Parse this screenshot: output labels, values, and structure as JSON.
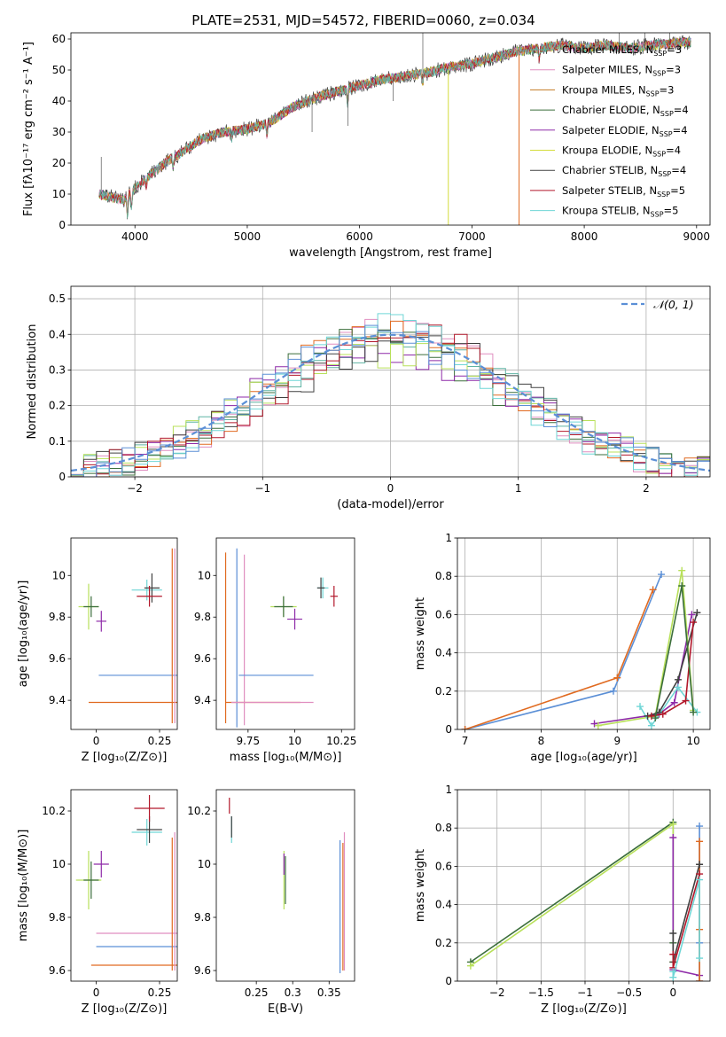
{
  "chart_data": [
    {
      "type": "line",
      "title": "PLATE=2531, MJD=54572, FIBERID=0060, z=0.034",
      "xlabel": "wavelength [Angstrom, rest frame]",
      "ylabel": "Flux [fλ10⁻¹⁷ erg cm⁻² s⁻¹ A⁻¹]",
      "xlim": [
        3430,
        9120
      ],
      "ylim": [
        0,
        62
      ],
      "xticks": [
        4000,
        5000,
        6000,
        7000,
        8000,
        9000
      ],
      "yticks": [
        0,
        10,
        20,
        30,
        40,
        50,
        60
      ],
      "legend_position": "upper right",
      "spectrum_anchor_points": [
        [
          3680,
          10
        ],
        [
          3900,
          8
        ],
        [
          4000,
          12
        ],
        [
          4200,
          18
        ],
        [
          4300,
          21
        ],
        [
          4400,
          23
        ],
        [
          4600,
          28
        ],
        [
          4800,
          30
        ],
        [
          5000,
          31
        ],
        [
          5200,
          33
        ],
        [
          5400,
          38
        ],
        [
          5600,
          41
        ],
        [
          5800,
          43
        ],
        [
          6000,
          45
        ],
        [
          6200,
          47
        ],
        [
          6400,
          48
        ],
        [
          6600,
          49
        ],
        [
          6800,
          51
        ],
        [
          7000,
          52
        ],
        [
          7200,
          54
        ],
        [
          7400,
          56
        ],
        [
          7600,
          57
        ],
        [
          7800,
          58
        ],
        [
          8000,
          57
        ],
        [
          8200,
          58
        ],
        [
          8400,
          57
        ],
        [
          8600,
          58
        ],
        [
          8900,
          59
        ]
      ],
      "series": [
        {
          "name": "Chabrier MILES, N_SSP=3",
          "name_main": "Chabrier MILES, N",
          "name_sub": "SSP",
          "name_end": "=3",
          "color": "#5fb3a3"
        },
        {
          "name": "Salpeter MILES, N_SSP=3",
          "name_main": "Salpeter MILES, N",
          "name_sub": "SSP",
          "name_end": "=3",
          "color": "#e08ec0"
        },
        {
          "name": "Kroupa MILES, N_SSP=3",
          "name_main": "Kroupa MILES, N",
          "name_sub": "SSP",
          "name_end": "=3",
          "color": "#c27a22"
        },
        {
          "name": "Chabrier ELODIE, N_SSP=4",
          "name_main": "Chabrier ELODIE, N",
          "name_sub": "SSP",
          "name_end": "=4",
          "color": "#3b6e3b"
        },
        {
          "name": "Salpeter ELODIE, N_SSP=4",
          "name_main": "Salpeter ELODIE, N",
          "name_sub": "SSP",
          "name_end": "=4",
          "color": "#8e2aa8"
        },
        {
          "name": "Kroupa ELODIE, N_SSP=4",
          "name_main": "Kroupa ELODIE, N",
          "name_sub": "SSP",
          "name_end": "=4",
          "color": "#d4dc3c"
        },
        {
          "name": "Chabrier STELIB, N_SSP=4",
          "name_main": "Chabrier STELIB, N",
          "name_sub": "SSP",
          "name_end": "=4",
          "color": "#404040"
        },
        {
          "name": "Salpeter STELIB, N_SSP=5",
          "name_main": "Salpeter STELIB, N",
          "name_sub": "SSP",
          "name_end": "=5",
          "color": "#b2182b"
        },
        {
          "name": "Kroupa STELIB, N_SSP=5",
          "name_main": "Kroupa STELIB, N",
          "name_sub": "SSP",
          "name_end": "=5",
          "color": "#6fd6d6"
        }
      ]
    },
    {
      "type": "area",
      "title": "",
      "xlabel": "(data-model)/error",
      "ylabel": "Normed distribution",
      "xlim": [
        -2.5,
        2.5
      ],
      "ylim": [
        0,
        0.535
      ],
      "xticks": [
        -2,
        -1,
        0,
        1,
        2
      ],
      "yticks": [
        0.0,
        0.1,
        0.2,
        0.3,
        0.4,
        0.5
      ],
      "grid": true,
      "legend_position": "upper right",
      "reference_curve": {
        "name": "𝒩(0, 1)",
        "label_main": "𝒩(0, 1)",
        "mean": 0,
        "sigma": 1,
        "color": "#5b8fd6"
      },
      "bin_width": 0.1,
      "histogram_colors": [
        "#5fb3a3",
        "#e08ec0",
        "#e06a20",
        "#3b6e3b",
        "#8e2aa8",
        "#b8e05a",
        "#404040",
        "#b2182b",
        "#6fd6d6",
        "#5b8fd6"
      ]
    },
    {
      "type": "scatter",
      "xlabel": "Z [log₁₀(Z/Z⊙)]",
      "ylabel": "age  [log₁₀(age/yr)]",
      "xlim": [
        -0.1,
        0.32
      ],
      "ylim": [
        9.26,
        10.18
      ],
      "xticks": [
        0.0,
        0.25
      ],
      "yticks": [
        9.4,
        9.6,
        9.8,
        10.0
      ],
      "errorbars": [
        {
          "x": -0.03,
          "y": 9.85,
          "xerr": 0.04,
          "yerr": 0.11,
          "color": "#b8e05a"
        },
        {
          "x": -0.02,
          "y": 9.85,
          "xerr": 0.03,
          "yerr": 0.05,
          "color": "#3b6e3b"
        },
        {
          "x": 0.02,
          "y": 9.78,
          "xerr": 0.02,
          "yerr": 0.05,
          "color": "#8e2aa8"
        },
        {
          "x": 0.2,
          "y": 9.93,
          "xerr": 0.06,
          "yerr": 0.05,
          "color": "#6fd6d6"
        },
        {
          "x": 0.22,
          "y": 9.94,
          "xerr": 0.03,
          "yerr": 0.07,
          "color": "#404040"
        },
        {
          "x": 0.21,
          "y": 9.9,
          "xerr": 0.05,
          "yerr": 0.05,
          "color": "#b2182b"
        },
        {
          "x": 0.3,
          "y": 9.52,
          "xerr": 0.29,
          "yerr": 0.0,
          "color": "#5b8fd6"
        },
        {
          "x": 0.3,
          "y": 9.39,
          "xerr": 0.33,
          "yerr": 0.0,
          "color": "#e06a20"
        },
        {
          "x": 0.3,
          "y": 9.71,
          "xerr": 0.0,
          "yerr": 0.42,
          "color": "#e06a20"
        },
        {
          "x": 0.31,
          "y": 9.71,
          "xerr": 0.0,
          "yerr": 0.42,
          "color": "#e08ec0"
        }
      ]
    },
    {
      "type": "scatter",
      "xlabel": "mass [log₁₀(M/M⊙)]",
      "ylabel": "",
      "xlim": [
        9.58,
        10.32
      ],
      "ylim": [
        9.26,
        10.18
      ],
      "xticks": [
        9.75,
        10.0,
        10.25
      ],
      "yticks": [
        9.4,
        9.6,
        9.8,
        10.0
      ],
      "errorbars": [
        {
          "x": 9.94,
          "y": 9.85,
          "xerr": 0.07,
          "yerr": 0.05,
          "color": "#b8e05a"
        },
        {
          "x": 9.94,
          "y": 9.85,
          "xerr": 0.05,
          "yerr": 0.05,
          "color": "#3b6e3b"
        },
        {
          "x": 10.0,
          "y": 9.79,
          "xerr": 0.04,
          "yerr": 0.05,
          "color": "#8e2aa8"
        },
        {
          "x": 10.15,
          "y": 9.94,
          "xerr": 0.03,
          "yerr": 0.05,
          "color": "#6fd6d6"
        },
        {
          "x": 10.14,
          "y": 9.94,
          "xerr": 0.02,
          "yerr": 0.05,
          "color": "#404040"
        },
        {
          "x": 10.21,
          "y": 9.9,
          "xerr": 0.02,
          "yerr": 0.05,
          "color": "#b2182b"
        },
        {
          "x": 9.69,
          "y": 9.7,
          "xerr": 0.0,
          "yerr": 0.43,
          "color": "#5b8fd6"
        },
        {
          "x": 9.63,
          "y": 9.7,
          "xerr": 0.0,
          "yerr": 0.41,
          "color": "#e06a20"
        },
        {
          "x": 9.73,
          "y": 9.69,
          "xerr": 0.0,
          "yerr": 0.41,
          "color": "#e08ec0"
        },
        {
          "x": 9.9,
          "y": 9.52,
          "xerr": 0.2,
          "yerr": 0.0,
          "color": "#5b8fd6"
        },
        {
          "x": 9.83,
          "y": 9.39,
          "xerr": 0.2,
          "yerr": 0.0,
          "color": "#e06a20"
        },
        {
          "x": 9.88,
          "y": 9.39,
          "xerr": 0.22,
          "yerr": 0.0,
          "color": "#e08ec0"
        }
      ]
    },
    {
      "type": "line",
      "xlabel": "age  [log₁₀(age/yr)]",
      "ylabel": "mass weight",
      "xlim": [
        6.9,
        10.22
      ],
      "ylim": [
        0,
        1.0
      ],
      "xticks": [
        7,
        8,
        9,
        10
      ],
      "yticks": [
        0.0,
        0.2,
        0.4,
        0.6,
        0.8,
        1.0
      ],
      "grid": true,
      "series": [
        {
          "color": "#5b8fd6",
          "x": [
            7.0,
            8.95,
            9.58
          ],
          "y": [
            0.0,
            0.2,
            0.81
          ]
        },
        {
          "color": "#e06a20",
          "x": [
            7.0,
            9.0,
            9.47
          ],
          "y": [
            0.0,
            0.27,
            0.73
          ]
        },
        {
          "color": "#8e2aa8",
          "x": [
            8.7,
            9.55,
            9.75,
            9.98
          ],
          "y": [
            0.03,
            0.08,
            0.14,
            0.6
          ]
        },
        {
          "color": "#b8e05a",
          "x": [
            8.75,
            9.5,
            9.85,
            10.0
          ],
          "y": [
            0.02,
            0.07,
            0.83,
            0.1
          ]
        },
        {
          "color": "#6fd6d6",
          "x": [
            9.3,
            9.45,
            9.8,
            10.05
          ],
          "y": [
            0.12,
            0.02,
            0.22,
            0.09
          ]
        },
        {
          "color": "#404040",
          "x": [
            9.4,
            9.55,
            9.8,
            10.05
          ],
          "y": [
            0.07,
            0.09,
            0.26,
            0.61
          ]
        },
        {
          "color": "#b2182b",
          "x": [
            9.45,
            9.6,
            9.9,
            10.0
          ],
          "y": [
            0.07,
            0.08,
            0.15,
            0.56
          ]
        },
        {
          "color": "#3b6e3b",
          "x": [
            9.5,
            9.85,
            10.0
          ],
          "y": [
            0.06,
            0.75,
            0.09
          ]
        }
      ]
    },
    {
      "type": "scatter",
      "xlabel": "Z [log₁₀(Z/Z⊙)]",
      "ylabel": "mass [log₁₀(M/M⊙)]",
      "xlim": [
        -0.1,
        0.32
      ],
      "ylim": [
        9.56,
        10.28
      ],
      "xticks": [
        0.0,
        0.25
      ],
      "yticks": [
        9.6,
        9.8,
        10.0,
        10.2
      ],
      "errorbars": [
        {
          "x": -0.03,
          "y": 9.94,
          "xerr": 0.05,
          "yerr": 0.11,
          "color": "#b8e05a"
        },
        {
          "x": -0.02,
          "y": 9.94,
          "xerr": 0.03,
          "yerr": 0.07,
          "color": "#3b6e3b"
        },
        {
          "x": 0.02,
          "y": 10.0,
          "xerr": 0.03,
          "yerr": 0.05,
          "color": "#8e2aa8"
        },
        {
          "x": 0.2,
          "y": 10.12,
          "xerr": 0.06,
          "yerr": 0.05,
          "color": "#6fd6d6"
        },
        {
          "x": 0.21,
          "y": 10.13,
          "xerr": 0.05,
          "yerr": 0.05,
          "color": "#404040"
        },
        {
          "x": 0.21,
          "y": 10.21,
          "xerr": 0.06,
          "yerr": 0.05,
          "color": "#b2182b"
        },
        {
          "x": 0.3,
          "y": 9.74,
          "xerr": 0.3,
          "yerr": 0.0,
          "color": "#e08ec0"
        },
        {
          "x": 0.3,
          "y": 9.69,
          "xerr": 0.3,
          "yerr": 0.0,
          "color": "#5b8fd6"
        },
        {
          "x": 0.3,
          "y": 9.62,
          "xerr": 0.32,
          "yerr": 0.0,
          "color": "#e06a20"
        },
        {
          "x": 0.3,
          "y": 9.85,
          "xerr": 0.0,
          "yerr": 0.25,
          "color": "#e06a20"
        },
        {
          "x": 0.31,
          "y": 9.86,
          "xerr": 0.0,
          "yerr": 0.26,
          "color": "#e08ec0"
        }
      ]
    },
    {
      "type": "scatter",
      "xlabel": "E(B-V)",
      "ylabel": "",
      "xlim": [
        0.195,
        0.385
      ],
      "ylim": [
        9.56,
        10.28
      ],
      "xticks": [
        0.25,
        0.3,
        0.35
      ],
      "yticks": [
        9.6,
        9.8,
        10.0,
        10.2
      ],
      "errorbars": [
        {
          "x": 0.213,
          "y": 10.22,
          "xerr": 0.0,
          "yerr": 0.03,
          "color": "#b2182b"
        },
        {
          "x": 0.216,
          "y": 10.13,
          "xerr": 0.0,
          "yerr": 0.05,
          "color": "#6fd6d6"
        },
        {
          "x": 0.216,
          "y": 10.14,
          "xerr": 0.0,
          "yerr": 0.04,
          "color": "#404040"
        },
        {
          "x": 0.288,
          "y": 9.94,
          "xerr": 0.0,
          "yerr": 0.11,
          "color": "#b8e05a"
        },
        {
          "x": 0.29,
          "y": 9.94,
          "xerr": 0.0,
          "yerr": 0.09,
          "color": "#3b6e3b"
        },
        {
          "x": 0.288,
          "y": 10.0,
          "xerr": 0.0,
          "yerr": 0.04,
          "color": "#8e2aa8"
        },
        {
          "x": 0.365,
          "y": 9.84,
          "xerr": 0.0,
          "yerr": 0.25,
          "color": "#5b8fd6"
        },
        {
          "x": 0.369,
          "y": 9.84,
          "xerr": 0.0,
          "yerr": 0.24,
          "color": "#e06a20"
        },
        {
          "x": 0.371,
          "y": 9.86,
          "xerr": 0.0,
          "yerr": 0.26,
          "color": "#e08ec0"
        }
      ]
    },
    {
      "type": "line",
      "xlabel": "Z [log₁₀(Z/Z⊙)]",
      "ylabel": "mass weight",
      "xlim": [
        -2.45,
        0.42
      ],
      "ylim": [
        0,
        1.0
      ],
      "xticks": [
        -2.0,
        -1.5,
        -1.0,
        -0.5,
        0.0
      ],
      "yticks": [
        0.0,
        0.2,
        0.4,
        0.6,
        0.8,
        1.0
      ],
      "grid": true,
      "series": [
        {
          "color": "#3b6e3b",
          "x": [
            -2.3,
            0.0,
            0.0
          ],
          "y": [
            0.1,
            0.83,
            0.2
          ]
        },
        {
          "color": "#b8e05a",
          "x": [
            -2.3,
            0.0,
            0.0
          ],
          "y": [
            0.08,
            0.82,
            0.1
          ]
        },
        {
          "color": "#8e2aa8",
          "x": [
            0.0,
            0.0,
            0.3
          ],
          "y": [
            0.75,
            0.06,
            0.03
          ]
        },
        {
          "color": "#5b8fd6",
          "x": [
            0.3,
            0.3,
            0.3
          ],
          "y": [
            0.81,
            0.2,
            0.0
          ]
        },
        {
          "color": "#e06a20",
          "x": [
            0.3,
            0.3,
            0.3
          ],
          "y": [
            0.73,
            0.27,
            0.0
          ]
        },
        {
          "color": "#404040",
          "x": [
            0.0,
            0.0,
            0.3
          ],
          "y": [
            0.25,
            0.1,
            0.61
          ]
        },
        {
          "color": "#b2182b",
          "x": [
            0.0,
            0.0,
            0.3
          ],
          "y": [
            0.14,
            0.07,
            0.56
          ]
        },
        {
          "color": "#6fd6d6",
          "x": [
            0.0,
            0.0,
            0.3,
            0.3
          ],
          "y": [
            0.05,
            0.02,
            0.53,
            0.12
          ]
        }
      ]
    }
  ]
}
